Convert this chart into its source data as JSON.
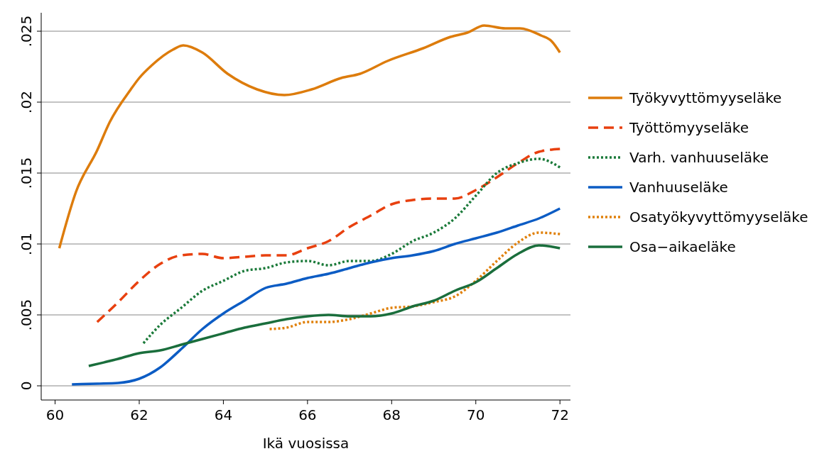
{
  "chart_data": {
    "type": "line",
    "xlabel": "Ikä vuosissa",
    "xlim": [
      59.67,
      72.25
    ],
    "xticks": [
      60,
      62,
      64,
      66,
      68,
      70,
      72
    ],
    "ylim": [
      -0.001,
      0.0263
    ],
    "yticks": [
      {
        "value": 0,
        "label": "0"
      },
      {
        "value": 0.005,
        "label": ".005"
      },
      {
        "value": 0.01,
        "label": ".01"
      },
      {
        "value": 0.015,
        "label": ".015"
      },
      {
        "value": 0.02,
        "label": ".02"
      },
      {
        "value": 0.025,
        "label": ".025"
      }
    ],
    "grid": "y",
    "legend": "right",
    "series": [
      {
        "name": "Työkyvyttömyyseläke",
        "color": "#dd7c0c",
        "line_style": "solid",
        "x": [
          60.1,
          60.5,
          61.0,
          61.3,
          61.8,
          62.0,
          62.3,
          62.8,
          63.05,
          63.5,
          64.1,
          64.8,
          65.45,
          66.1,
          66.8,
          67.25,
          67.9,
          68.75,
          69.4,
          69.8,
          70.2,
          70.7,
          71.05,
          71.55,
          71.8,
          72.0
        ],
        "values": [
          0.0097,
          0.0137,
          0.0166,
          0.0186,
          0.0209,
          0.0217,
          0.0226,
          0.0237,
          0.024,
          0.0235,
          0.022,
          0.0209,
          0.0205,
          0.0209,
          0.0217,
          0.022,
          0.0229,
          0.0238,
          0.0246,
          0.0249,
          0.0254,
          0.0252,
          0.0252,
          0.0247,
          0.0243,
          0.0235
        ]
      },
      {
        "name": "Työttömyyseläke",
        "color": "#e8400f",
        "line_style": "dashed",
        "x": [
          61.0,
          61.5,
          62,
          62.5,
          63,
          63.5,
          64,
          64.5,
          65,
          65.5,
          66,
          66.5,
          67,
          67.5,
          68,
          68.5,
          69,
          69.5,
          70,
          70.5,
          71,
          71.5,
          72
        ],
        "values": [
          0.0045,
          0.0059,
          0.0074,
          0.0086,
          0.0092,
          0.0093,
          0.009,
          0.0091,
          0.0092,
          0.0092,
          0.0097,
          0.0102,
          0.0112,
          0.012,
          0.0128,
          0.0131,
          0.0132,
          0.0132,
          0.0138,
          0.0147,
          0.0157,
          0.0165,
          0.0167
        ]
      },
      {
        "name": "Varh. vanhuuseläke",
        "color": "#1b7a3a",
        "line_style": "dotted",
        "x": [
          62.1,
          62.5,
          63,
          63.5,
          64,
          64.5,
          65,
          65.5,
          66,
          66.5,
          67,
          67.5,
          68,
          68.5,
          69,
          69.5,
          70,
          70.5,
          71,
          71.5,
          72
        ],
        "values": [
          0.003,
          0.0043,
          0.0055,
          0.0067,
          0.0074,
          0.0081,
          0.0083,
          0.0087,
          0.0088,
          0.0085,
          0.0088,
          0.0088,
          0.0093,
          0.0102,
          0.0108,
          0.0118,
          0.0134,
          0.015,
          0.0157,
          0.016,
          0.0154
        ]
      },
      {
        "name": "Vanhuuseläke",
        "color": "#0c5cc4",
        "line_style": "solid",
        "x": [
          60.4,
          61,
          61.5,
          62,
          62.5,
          63,
          63.5,
          64,
          64.5,
          65,
          65.5,
          66,
          66.5,
          67,
          67.5,
          68,
          68.5,
          69,
          69.5,
          70,
          70.5,
          71,
          71.5,
          72
        ],
        "values": [
          0.0001,
          0.00015,
          0.0002,
          0.0005,
          0.0013,
          0.0026,
          0.004,
          0.0051,
          0.006,
          0.0069,
          0.0072,
          0.0076,
          0.0079,
          0.0083,
          0.0087,
          0.009,
          0.0092,
          0.0095,
          0.01,
          0.0104,
          0.0108,
          0.0113,
          0.0118,
          0.0125
        ]
      },
      {
        "name": "Osatyökyvyttömyyseläke",
        "color": "#e0800a",
        "line_style": "dotted",
        "x": [
          65.1,
          65.5,
          66,
          66.5,
          67,
          67.5,
          68,
          68.5,
          69,
          69.5,
          70,
          70.5,
          71,
          71.5,
          72
        ],
        "values": [
          0.004,
          0.0041,
          0.0045,
          0.0045,
          0.0047,
          0.0051,
          0.0055,
          0.0056,
          0.0059,
          0.0063,
          0.0074,
          0.0088,
          0.0101,
          0.0108,
          0.0107
        ]
      },
      {
        "name": "Osa−aikaeläke",
        "color": "#1a6e3c",
        "line_style": "solid",
        "x": [
          60.8,
          61.5,
          62,
          62.5,
          63,
          63.5,
          64,
          64.5,
          65,
          65.5,
          66,
          66.5,
          67,
          67.5,
          68,
          68.5,
          69,
          69.5,
          70,
          70.5,
          71,
          71.5,
          72
        ],
        "values": [
          0.0014,
          0.0019,
          0.0023,
          0.0025,
          0.0029,
          0.0033,
          0.0037,
          0.0041,
          0.0044,
          0.0047,
          0.0049,
          0.005,
          0.0049,
          0.0049,
          0.0051,
          0.0056,
          0.006,
          0.0067,
          0.0073,
          0.0083,
          0.0093,
          0.0099,
          0.0097
        ]
      }
    ]
  }
}
